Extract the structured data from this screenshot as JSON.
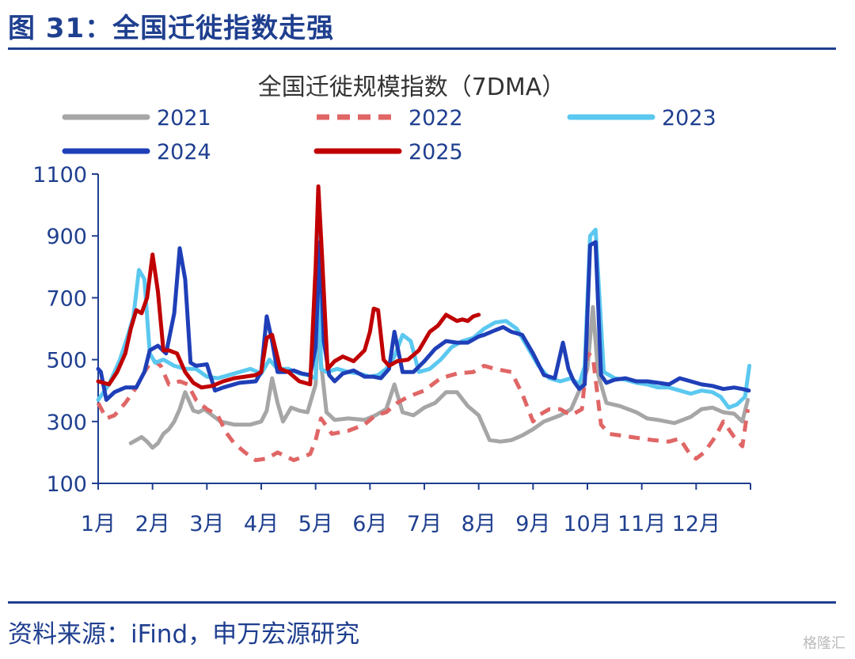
{
  "header": {
    "title": "图 31：全国迁徙指数走强"
  },
  "footer": {
    "source": "资料来源：iFind，申万宏源研究",
    "watermark": "格隆汇"
  },
  "chart_data": {
    "type": "line",
    "title": "全国迁徙规模指数（7DMA）",
    "xlabel": "",
    "ylabel": "",
    "ylim": [
      100,
      1100
    ],
    "yticks": [
      100,
      300,
      500,
      700,
      900,
      1100
    ],
    "x_tick_labels": [
      "1月",
      "2月",
      "3月",
      "4月",
      "5月",
      "6月",
      "7月",
      "8月",
      "9月",
      "10月",
      "11月",
      "12月"
    ],
    "xlim": [
      1,
      13
    ],
    "grid": false,
    "legend_position": "top",
    "series": [
      {
        "name": "2021",
        "color": "#a6a6a6",
        "dash": "solid",
        "x": [
          1.6,
          1.7,
          1.8,
          1.9,
          2.0,
          2.1,
          2.2,
          2.3,
          2.4,
          2.5,
          2.6,
          2.75,
          2.85,
          2.95,
          3.1,
          3.25,
          3.5,
          3.8,
          4.0,
          4.1,
          4.2,
          4.3,
          4.4,
          4.55,
          4.7,
          4.85,
          5.0,
          5.05,
          5.1,
          5.2,
          5.35,
          5.6,
          5.9,
          6.1,
          6.3,
          6.45,
          6.6,
          6.8,
          7.0,
          7.2,
          7.4,
          7.6,
          7.8,
          8.0,
          8.2,
          8.4,
          8.6,
          8.8,
          9.0,
          9.2,
          9.5,
          9.7,
          9.85,
          10.0,
          10.1,
          10.2,
          10.35,
          10.6,
          10.9,
          11.1,
          11.3,
          11.6,
          11.9,
          12.1,
          12.3,
          12.5,
          12.7,
          12.85,
          12.95
        ],
        "values": [
          230,
          240,
          250,
          235,
          215,
          230,
          260,
          275,
          300,
          340,
          395,
          335,
          330,
          340,
          320,
          300,
          290,
          290,
          300,
          335,
          440,
          360,
          300,
          345,
          335,
          330,
          420,
          630,
          490,
          330,
          305,
          310,
          305,
          320,
          340,
          420,
          330,
          320,
          345,
          360,
          395,
          395,
          350,
          320,
          240,
          235,
          240,
          255,
          275,
          300,
          320,
          340,
          400,
          470,
          670,
          450,
          360,
          350,
          330,
          310,
          305,
          295,
          315,
          340,
          345,
          330,
          325,
          300,
          370
        ]
      },
      {
        "name": "2022",
        "color": "#e06666",
        "dash": "dashed",
        "x": [
          1.0,
          1.15,
          1.3,
          1.5,
          1.7,
          1.85,
          2.0,
          2.15,
          2.3,
          2.5,
          2.65,
          2.8,
          3.0,
          3.2,
          3.35,
          3.5,
          3.7,
          3.9,
          4.1,
          4.3,
          4.6,
          4.9,
          5.0,
          5.1,
          5.3,
          5.6,
          5.9,
          6.1,
          6.3,
          6.5,
          6.7,
          7.0,
          7.3,
          7.6,
          7.9,
          8.1,
          8.3,
          8.6,
          8.8,
          9.0,
          9.1,
          9.3,
          9.5,
          9.7,
          9.9,
          10.0,
          10.1,
          10.25,
          10.4,
          10.6,
          10.8,
          11.0,
          11.2,
          11.5,
          11.7,
          11.9,
          12.0,
          12.15,
          12.35,
          12.5,
          12.7,
          12.85,
          12.95
        ],
        "values": [
          360,
          310,
          320,
          360,
          410,
          460,
          500,
          480,
          420,
          430,
          420,
          370,
          340,
          320,
          265,
          230,
          200,
          175,
          180,
          200,
          175,
          195,
          240,
          310,
          260,
          270,
          290,
          320,
          330,
          360,
          380,
          400,
          440,
          455,
          460,
          480,
          470,
          460,
          390,
          300,
          320,
          340,
          340,
          320,
          340,
          520,
          510,
          290,
          260,
          255,
          250,
          245,
          240,
          235,
          245,
          190,
          180,
          200,
          250,
          300,
          250,
          220,
          340
        ]
      },
      {
        "name": "2023",
        "color": "#5bc8f0",
        "dash": "solid",
        "x": [
          1.0,
          1.2,
          1.4,
          1.55,
          1.65,
          1.75,
          1.85,
          1.95,
          2.05,
          2.2,
          2.4,
          2.6,
          2.8,
          3.0,
          3.2,
          3.5,
          3.8,
          4.0,
          4.15,
          4.3,
          4.5,
          4.7,
          4.85,
          5.0,
          5.05,
          5.1,
          5.2,
          5.4,
          5.6,
          5.8,
          6.0,
          6.15,
          6.3,
          6.45,
          6.6,
          6.75,
          6.9,
          7.1,
          7.3,
          7.5,
          7.7,
          7.9,
          8.1,
          8.3,
          8.5,
          8.7,
          8.9,
          9.1,
          9.3,
          9.5,
          9.7,
          9.85,
          9.95,
          10.05,
          10.15,
          10.3,
          10.5,
          10.7,
          10.9,
          11.1,
          11.3,
          11.5,
          11.7,
          11.9,
          12.1,
          12.3,
          12.45,
          12.6,
          12.75,
          12.9,
          12.98
        ],
        "values": [
          370,
          420,
          500,
          580,
          640,
          790,
          760,
          520,
          490,
          500,
          480,
          470,
          470,
          445,
          440,
          455,
          470,
          455,
          500,
          470,
          470,
          455,
          450,
          440,
          920,
          470,
          460,
          470,
          460,
          455,
          445,
          450,
          470,
          510,
          580,
          560,
          460,
          470,
          500,
          540,
          560,
          570,
          600,
          620,
          625,
          600,
          540,
          480,
          440,
          430,
          440,
          420,
          480,
          900,
          920,
          460,
          440,
          435,
          425,
          420,
          410,
          410,
          400,
          390,
          400,
          395,
          380,
          345,
          355,
          380,
          480
        ]
      },
      {
        "name": "2024",
        "color": "#1f3fb8",
        "dash": "solid",
        "x": [
          1.0,
          1.05,
          1.15,
          1.3,
          1.5,
          1.7,
          1.85,
          1.95,
          2.1,
          2.25,
          2.4,
          2.5,
          2.6,
          2.7,
          2.8,
          3.0,
          3.15,
          3.3,
          3.6,
          3.9,
          4.0,
          4.1,
          4.2,
          4.3,
          4.45,
          4.6,
          4.75,
          4.9,
          5.0,
          5.08,
          5.15,
          5.25,
          5.35,
          5.5,
          5.7,
          5.9,
          6.05,
          6.2,
          6.35,
          6.45,
          6.6,
          6.8,
          7.0,
          7.2,
          7.4,
          7.6,
          7.8,
          8.0,
          8.1,
          8.3,
          8.45,
          8.6,
          8.8,
          9.0,
          9.2,
          9.4,
          9.55,
          9.65,
          9.75,
          9.85,
          9.95,
          10.05,
          10.15,
          10.25,
          10.35,
          10.5,
          10.7,
          10.9,
          11.1,
          11.3,
          11.5,
          11.7,
          11.9,
          12.1,
          12.3,
          12.5,
          12.7,
          12.85,
          12.97
        ],
        "values": [
          470,
          460,
          370,
          395,
          410,
          410,
          460,
          530,
          545,
          520,
          650,
          860,
          760,
          490,
          480,
          485,
          400,
          410,
          425,
          430,
          460,
          640,
          560,
          460,
          460,
          465,
          455,
          450,
          540,
          880,
          560,
          450,
          430,
          455,
          465,
          445,
          445,
          440,
          470,
          590,
          460,
          460,
          495,
          535,
          560,
          555,
          555,
          575,
          580,
          595,
          605,
          590,
          580,
          520,
          450,
          440,
          555,
          470,
          430,
          405,
          420,
          870,
          880,
          450,
          425,
          435,
          440,
          430,
          430,
          425,
          420,
          440,
          430,
          420,
          415,
          405,
          410,
          405,
          400
        ]
      },
      {
        "name": "2025",
        "color": "#c00000",
        "dash": "solid",
        "x": [
          1.0,
          1.2,
          1.35,
          1.5,
          1.6,
          1.7,
          1.8,
          1.9,
          2.0,
          2.1,
          2.2,
          2.3,
          2.45,
          2.6,
          2.75,
          2.9,
          3.1,
          3.3,
          3.5,
          3.7,
          3.9,
          4.0,
          4.1,
          4.2,
          4.35,
          4.5,
          4.7,
          4.9,
          5.0,
          5.05,
          5.12,
          5.22,
          5.35,
          5.5,
          5.7,
          5.9,
          6.0,
          6.07,
          6.15,
          6.25,
          6.35,
          6.5,
          6.7,
          6.9,
          7.1,
          7.25,
          7.4,
          7.6,
          7.7,
          7.8,
          7.9,
          8.0
        ],
        "values": [
          430,
          420,
          460,
          520,
          600,
          660,
          650,
          700,
          840,
          720,
          530,
          530,
          520,
          460,
          425,
          410,
          415,
          430,
          440,
          445,
          450,
          460,
          570,
          580,
          470,
          460,
          430,
          420,
          800,
          1060,
          830,
          470,
          495,
          510,
          495,
          530,
          590,
          665,
          660,
          500,
          480,
          495,
          500,
          530,
          590,
          610,
          645,
          625,
          630,
          625,
          640,
          645
        ]
      }
    ]
  }
}
